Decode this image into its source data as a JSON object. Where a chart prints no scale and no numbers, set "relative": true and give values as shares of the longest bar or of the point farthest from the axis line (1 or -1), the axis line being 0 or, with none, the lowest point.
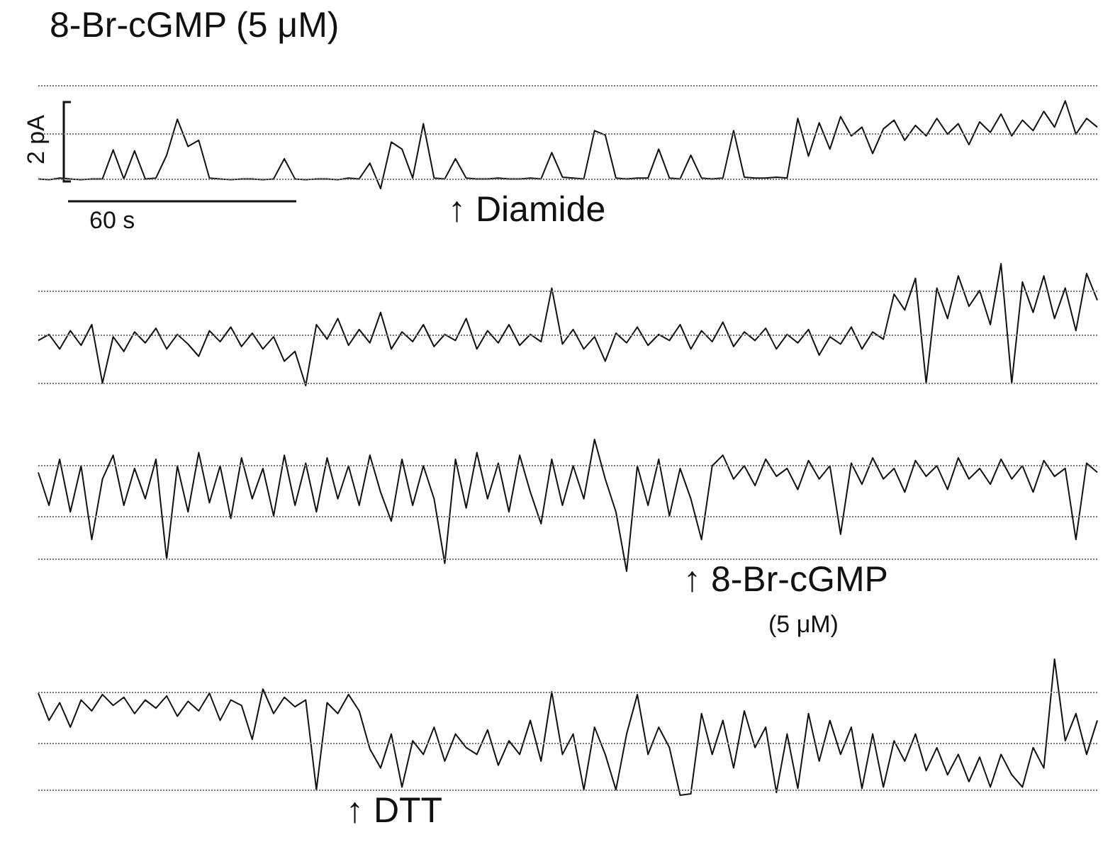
{
  "chart_data": [
    {
      "type": "line",
      "title": "8-Br-cGMP (5 μM)",
      "relative": true,
      "color": "#111111",
      "annotations": [
        "2 pA",
        "60 s",
        "↑ Diamide"
      ],
      "categories": [
        null,
        null,
        null,
        null,
        null,
        null,
        null,
        null,
        null,
        null,
        null,
        null,
        null,
        null,
        null,
        null,
        null,
        null,
        null,
        null,
        null,
        null,
        null,
        null,
        null,
        null,
        null,
        null,
        null,
        null,
        null,
        null,
        null,
        null,
        null,
        null,
        null,
        null,
        null,
        null,
        null,
        null,
        null,
        null,
        null,
        null,
        null,
        null,
        null,
        null,
        null,
        null,
        null,
        null,
        null,
        null,
        null,
        null,
        null,
        null,
        null,
        null,
        null,
        null,
        null,
        null,
        null,
        null,
        null,
        null,
        null,
        null,
        null,
        null,
        null,
        null,
        null,
        null,
        null,
        null,
        null,
        null,
        null,
        null,
        null,
        null,
        null,
        null,
        null,
        null,
        null,
        null,
        null,
        null,
        null,
        null,
        null,
        null,
        null,
        null
      ],
      "values": [
        0.11,
        0.1,
        0.12,
        0.11,
        0.1,
        0.11,
        0.11,
        0.44,
        0.11,
        0.43,
        0.11,
        0.12,
        0.38,
        0.79,
        0.48,
        0.55,
        0.12,
        0.11,
        0.1,
        0.11,
        0.11,
        0.1,
        0.11,
        0.34,
        0.11,
        0.1,
        0.11,
        0.11,
        0.1,
        0.12,
        0.11,
        0.29,
        0,
        0.53,
        0.45,
        0.12,
        0.74,
        0.12,
        0.11,
        0.34,
        0.12,
        0.11,
        0.11,
        0.12,
        0.11,
        0.11,
        0.12,
        0.11,
        0.41,
        0.13,
        0.12,
        0.11,
        0.66,
        0.61,
        0.12,
        0.11,
        0.12,
        0.12,
        0.45,
        0.12,
        0.11,
        0.38,
        0.12,
        0.11,
        0.12,
        0.66,
        0.13,
        0.12,
        0.12,
        0.13,
        0.12,
        0.8,
        0.37,
        0.75,
        0.45,
        0.82,
        0.6,
        0.7,
        0.4,
        0.68,
        0.78,
        0.55,
        0.72,
        0.6,
        0.8,
        0.62,
        0.74,
        0.5,
        0.76,
        0.64,
        0.85,
        0.6,
        0.78,
        0.66,
        0.88,
        0.7,
        1,
        0.62,
        0.8,
        0.7
      ],
      "ref_lines": [
        {
          "axis": "y",
          "value": 0.11,
          "color": "#777777",
          "line_style": "dotted"
        },
        {
          "axis": "y",
          "value": 0.63,
          "color": "#777777",
          "line_style": "dotted"
        },
        {
          "axis": "y",
          "value": 1.18,
          "color": "#777777",
          "line_style": "dotted"
        }
      ]
    },
    {
      "type": "line",
      "relative": true,
      "color": "#111111",
      "categories": [
        null,
        null,
        null,
        null,
        null,
        null,
        null,
        null,
        null,
        null,
        null,
        null,
        null,
        null,
        null,
        null,
        null,
        null,
        null,
        null,
        null,
        null,
        null,
        null,
        null,
        null,
        null,
        null,
        null,
        null,
        null,
        null,
        null,
        null,
        null,
        null,
        null,
        null,
        null,
        null,
        null,
        null,
        null,
        null,
        null,
        null,
        null,
        null,
        null,
        null,
        null,
        null,
        null,
        null,
        null,
        null,
        null,
        null,
        null,
        null,
        null,
        null,
        null,
        null,
        null,
        null,
        null,
        null,
        null,
        null,
        null,
        null,
        null,
        null,
        null,
        null,
        null,
        null,
        null,
        null,
        null,
        null,
        null,
        null,
        null,
        null,
        null,
        null,
        null,
        null,
        null,
        null,
        null,
        null,
        null,
        null,
        null,
        null,
        null,
        null
      ],
      "values": [
        0.37,
        0.42,
        0.3,
        0.45,
        0.33,
        0.5,
        0.02,
        0.4,
        0.28,
        0.44,
        0.35,
        0.47,
        0.3,
        0.42,
        0.34,
        0.24,
        0.45,
        0.36,
        0.48,
        0.32,
        0.43,
        0.3,
        0.4,
        0.2,
        0.28,
        0,
        0.5,
        0.38,
        0.55,
        0.33,
        0.46,
        0.35,
        0.6,
        0.3,
        0.44,
        0.36,
        0.5,
        0.32,
        0.42,
        0.37,
        0.55,
        0.3,
        0.45,
        0.35,
        0.5,
        0.33,
        0.42,
        0.36,
        0.8,
        0.34,
        0.46,
        0.3,
        0.4,
        0.2,
        0.43,
        0.35,
        0.48,
        0.33,
        0.42,
        0.37,
        0.5,
        0.3,
        0.45,
        0.36,
        0.52,
        0.32,
        0.44,
        0.37,
        0.47,
        0.3,
        0.42,
        0.35,
        0.46,
        0.25,
        0.4,
        0.34,
        0.48,
        0.3,
        0.44,
        0.38,
        0.75,
        0.62,
        0.88,
        0.02,
        0.8,
        0.55,
        0.9,
        0.65,
        0.78,
        0.5,
        1,
        0.02,
        0.85,
        0.6,
        0.9,
        0.55,
        0.8,
        0.45,
        0.92,
        0.7
      ],
      "ref_lines": [
        {
          "axis": "y",
          "value": 0.02,
          "color": "#777777",
          "line_style": "dotted"
        },
        {
          "axis": "y",
          "value": 0.41,
          "color": "#777777",
          "line_style": "dotted"
        },
        {
          "axis": "y",
          "value": 0.78,
          "color": "#777777",
          "line_style": "dotted"
        }
      ]
    },
    {
      "type": "line",
      "relative": true,
      "color": "#111111",
      "annotations": [
        "↑ 8-Br-cGMP",
        "(5 μM)"
      ],
      "categories": [
        null,
        null,
        null,
        null,
        null,
        null,
        null,
        null,
        null,
        null,
        null,
        null,
        null,
        null,
        null,
        null,
        null,
        null,
        null,
        null,
        null,
        null,
        null,
        null,
        null,
        null,
        null,
        null,
        null,
        null,
        null,
        null,
        null,
        null,
        null,
        null,
        null,
        null,
        null,
        null,
        null,
        null,
        null,
        null,
        null,
        null,
        null,
        null,
        null,
        null,
        null,
        null,
        null,
        null,
        null,
        null,
        null,
        null,
        null,
        null,
        null,
        null,
        null,
        null,
        null,
        null,
        null,
        null,
        null,
        null,
        null,
        null,
        null,
        null,
        null,
        null,
        null,
        null,
        null,
        null,
        null,
        null,
        null,
        null,
        null,
        null,
        null,
        null,
        null,
        null,
        null,
        null,
        null,
        null,
        null,
        null,
        null,
        null,
        null,
        null
      ],
      "values": [
        0.75,
        0.5,
        0.85,
        0.45,
        0.8,
        0.24,
        0.7,
        0.88,
        0.5,
        0.78,
        0.55,
        0.85,
        0.09,
        0.8,
        0.45,
        0.9,
        0.52,
        0.8,
        0.4,
        0.86,
        0.55,
        0.78,
        0.42,
        0.88,
        0.5,
        0.82,
        0.45,
        0.86,
        0.55,
        0.8,
        0.5,
        0.88,
        0.6,
        0.38,
        0.85,
        0.5,
        0.8,
        0.55,
        0.06,
        0.85,
        0.48,
        0.9,
        0.55,
        0.82,
        0.45,
        0.88,
        0.6,
        0.36,
        0.85,
        0.5,
        0.8,
        0.55,
        1,
        0.7,
        0.45,
        0,
        0.8,
        0.5,
        0.85,
        0.42,
        0.78,
        0.55,
        0.24,
        0.8,
        0.88,
        0.7,
        0.8,
        0.65,
        0.85,
        0.72,
        0.78,
        0.62,
        0.84,
        0.7,
        0.8,
        0.28,
        0.82,
        0.66,
        0.86,
        0.7,
        0.78,
        0.6,
        0.84,
        0.72,
        0.8,
        0.62,
        0.86,
        0.7,
        0.78,
        0.66,
        0.85,
        0.7,
        0.8,
        0.6,
        0.84,
        0.72,
        0.78,
        0.24,
        0.82,
        0.75
      ],
      "ref_lines": [
        {
          "axis": "y",
          "value": 0.09,
          "color": "#777777",
          "line_style": "dotted"
        },
        {
          "axis": "y",
          "value": 0.42,
          "color": "#777777",
          "line_style": "dotted"
        },
        {
          "axis": "y",
          "value": 0.8,
          "color": "#777777",
          "line_style": "dotted"
        }
      ]
    },
    {
      "type": "line",
      "relative": true,
      "color": "#111111",
      "annotations": [
        "↑ DTT"
      ],
      "categories": [
        null,
        null,
        null,
        null,
        null,
        null,
        null,
        null,
        null,
        null,
        null,
        null,
        null,
        null,
        null,
        null,
        null,
        null,
        null,
        null,
        null,
        null,
        null,
        null,
        null,
        null,
        null,
        null,
        null,
        null,
        null,
        null,
        null,
        null,
        null,
        null,
        null,
        null,
        null,
        null,
        null,
        null,
        null,
        null,
        null,
        null,
        null,
        null,
        null,
        null,
        null,
        null,
        null,
        null,
        null,
        null,
        null,
        null,
        null,
        null,
        null,
        null,
        null,
        null,
        null,
        null,
        null,
        null,
        null,
        null,
        null,
        null,
        null,
        null,
        null,
        null,
        null,
        null,
        null,
        null,
        null,
        null,
        null,
        null,
        null,
        null,
        null,
        null,
        null,
        null,
        null,
        null,
        null,
        null,
        null,
        null,
        null,
        null,
        null,
        null
      ],
      "values": [
        0.75,
        0.55,
        0.68,
        0.5,
        0.7,
        0.62,
        0.74,
        0.66,
        0.72,
        0.6,
        0.7,
        0.64,
        0.73,
        0.58,
        0.69,
        0.62,
        0.75,
        0.55,
        0.7,
        0.66,
        0.41,
        0.78,
        0.6,
        0.72,
        0.65,
        0.7,
        0.04,
        0.68,
        0.6,
        0.74,
        0.62,
        0.34,
        0.2,
        0.45,
        0.06,
        0.4,
        0.3,
        0.5,
        0.25,
        0.45,
        0.35,
        0.3,
        0.48,
        0.22,
        0.4,
        0.3,
        0.55,
        0.25,
        0.76,
        0.3,
        0.45,
        0.04,
        0.5,
        0.3,
        0.04,
        0.45,
        0.74,
        0.3,
        0.5,
        0.35,
        0,
        0.01,
        0.6,
        0.3,
        0.55,
        0.2,
        0.62,
        0.35,
        0.5,
        0.02,
        0.45,
        0.05,
        0.6,
        0.25,
        0.55,
        0.3,
        0.5,
        0.05,
        0.45,
        0.06,
        0.4,
        0.25,
        0.45,
        0.18,
        0.35,
        0.15,
        0.3,
        0.1,
        0.28,
        0.06,
        0.3,
        0.15,
        0.06,
        0.35,
        0.2,
        1,
        0.4,
        0.6,
        0.3,
        0.55
      ],
      "ref_lines": [
        {
          "axis": "y",
          "value": 0.04,
          "color": "#777777",
          "line_style": "dotted"
        },
        {
          "axis": "y",
          "value": 0.38,
          "color": "#777777",
          "line_style": "dotted"
        },
        {
          "axis": "y",
          "value": 0.76,
          "color": "#777777",
          "line_style": "dotted"
        }
      ]
    }
  ]
}
